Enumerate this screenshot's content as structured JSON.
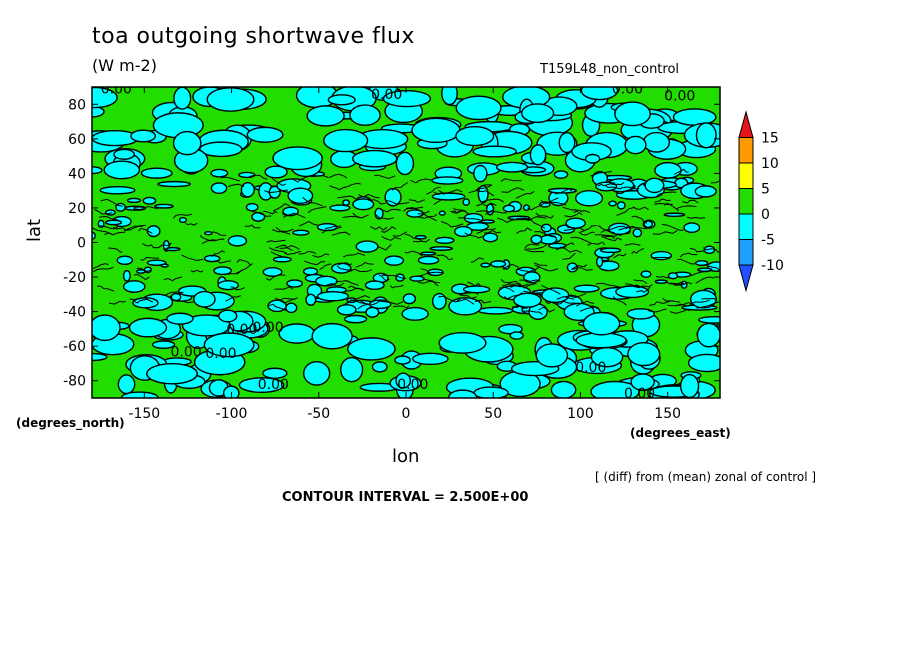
{
  "chart_data": {
    "type": "heatmap",
    "title": "toa outgoing shortwave flux",
    "units": "(W m-2)",
    "run_label": "T159L48_non_control",
    "xlabel": "lon",
    "ylabel": "lat",
    "x_unit_label": "(degrees_east)",
    "y_unit_label": "(degrees_north)",
    "xlim": [
      -180,
      180
    ],
    "ylim": [
      -90,
      90
    ],
    "x_ticks": [
      -150,
      -100,
      -50,
      0,
      50,
      100,
      150
    ],
    "y_ticks": [
      -80,
      -60,
      -40,
      -20,
      0,
      20,
      40,
      60,
      80
    ],
    "contour_label": "0.00",
    "colorbar": {
      "labels": [
        15,
        10,
        5,
        0,
        -5,
        -10
      ],
      "bins": [
        {
          "from": 15,
          "to": null,
          "color": "#e8141a"
        },
        {
          "from": 10,
          "to": 15,
          "color": "#ff9a00"
        },
        {
          "from": 5,
          "to": 10,
          "color": "#ffff00"
        },
        {
          "from": 0,
          "to": 5,
          "color": "#22dd00"
        },
        {
          "from": -5,
          "to": 0,
          "color": "#00ffff"
        },
        {
          "from": -10,
          "to": -5,
          "color": "#1ea0ff"
        },
        {
          "from": null,
          "to": -10,
          "color": "#2050ff"
        }
      ]
    },
    "note": "[ (diff) from (mean) zonal of control ]",
    "contour_interval": "CONTOUR INTERVAL = 2.500E+00",
    "field_colors": {
      "positive": "#22dd00",
      "negative": "#00ffff"
    }
  }
}
